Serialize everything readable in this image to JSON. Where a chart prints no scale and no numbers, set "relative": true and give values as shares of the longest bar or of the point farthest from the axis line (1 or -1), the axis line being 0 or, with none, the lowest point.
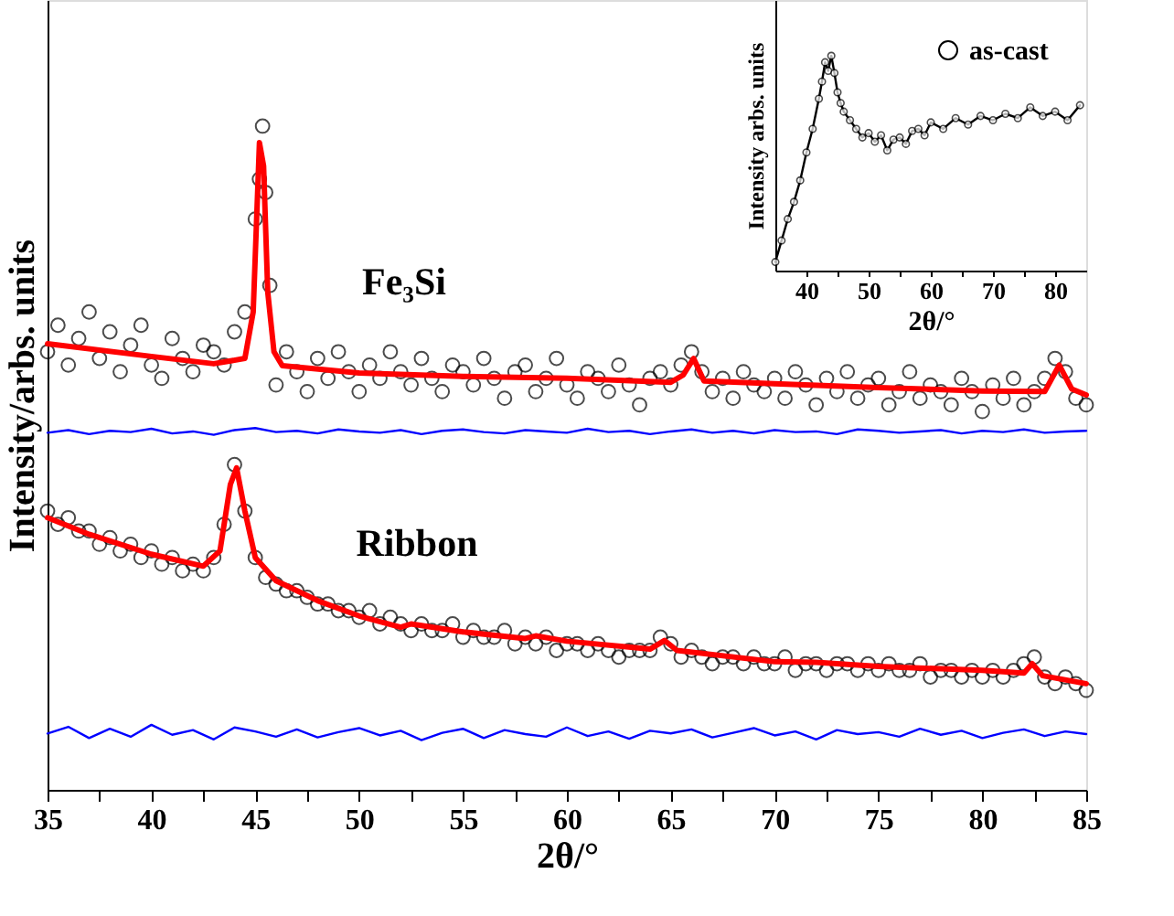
{
  "chart_data": [
    {
      "type": "scatter",
      "relative": true,
      "xlabel": "2θ/°",
      "ylabel": "Intensity/arbs. units",
      "xlim": [
        35,
        85
      ],
      "xticks": [
        35,
        {
          "value": 37.5,
          "label": null
        },
        40,
        {
          "value": 42.5,
          "label": null
        },
        45,
        {
          "value": 47.5,
          "label": null
        },
        50,
        {
          "value": 52.5,
          "label": null
        },
        55,
        {
          "value": 57.5,
          "label": null
        },
        60,
        {
          "value": 62.5,
          "label": null
        },
        65,
        {
          "value": 67.5,
          "label": null
        },
        70,
        {
          "value": 72.5,
          "label": null
        },
        75,
        {
          "value": 77.5,
          "label": null
        },
        80,
        {
          "value": 82.5,
          "label": null
        },
        85
      ],
      "legend": false,
      "line_style": "solid",
      "annotations": [
        "Fe₃Si",
        "Ribbon"
      ],
      "series": [
        {
          "type": "scatter",
          "marker": "circle",
          "color": "#000000",
          "x": [
            35,
            35.5,
            36,
            36.5,
            37,
            37.5,
            38,
            38.5,
            39,
            39.5,
            40,
            40.5,
            41,
            41.5,
            42,
            42.5,
            43,
            43.5,
            44,
            44.5,
            45,
            45.2,
            45.35,
            45.5,
            45.7,
            46,
            46.5,
            47,
            47.5,
            48,
            48.5,
            49,
            49.5,
            50,
            50.5,
            51,
            51.5,
            52,
            52.5,
            53,
            53.5,
            54,
            54.5,
            55,
            55.5,
            56,
            56.5,
            57,
            57.5,
            58,
            58.5,
            59,
            59.5,
            60,
            60.5,
            61,
            61.5,
            62,
            62.5,
            63,
            63.5,
            64,
            64.5,
            65,
            65.5,
            66,
            66.5,
            67,
            67.5,
            68,
            68.5,
            69,
            69.5,
            70,
            70.5,
            71,
            71.5,
            72,
            72.5,
            73,
            73.5,
            74,
            74.5,
            75,
            75.5,
            76,
            76.5,
            77,
            77.5,
            78,
            78.5,
            79,
            79.5,
            80,
            80.5,
            81,
            81.5,
            82,
            82.5,
            83,
            83.5,
            84,
            84.5,
            85
          ],
          "values": [
            0.66,
            0.7,
            0.64,
            0.68,
            0.72,
            0.65,
            0.69,
            0.63,
            0.67,
            0.7,
            0.64,
            0.62,
            0.68,
            0.65,
            0.63,
            0.67,
            0.66,
            0.64,
            0.69,
            0.72,
            0.86,
            0.92,
            1.0,
            0.9,
            0.76,
            0.61,
            0.66,
            0.63,
            0.6,
            0.65,
            0.62,
            0.66,
            0.63,
            0.6,
            0.64,
            0.62,
            0.66,
            0.63,
            0.61,
            0.65,
            0.62,
            0.6,
            0.64,
            0.63,
            0.61,
            0.65,
            0.62,
            0.59,
            0.63,
            0.64,
            0.6,
            0.62,
            0.65,
            0.61,
            0.59,
            0.63,
            0.62,
            0.6,
            0.64,
            0.61,
            0.58,
            0.62,
            0.63,
            0.61,
            0.64,
            0.66,
            0.63,
            0.6,
            0.62,
            0.59,
            0.63,
            0.61,
            0.6,
            0.62,
            0.59,
            0.63,
            0.61,
            0.58,
            0.62,
            0.6,
            0.63,
            0.59,
            0.61,
            0.62,
            0.58,
            0.6,
            0.63,
            0.59,
            0.61,
            0.6,
            0.58,
            0.62,
            0.6,
            0.57,
            0.61,
            0.59,
            0.62,
            0.58,
            0.6,
            0.62,
            0.65,
            0.63,
            0.59,
            0.58
          ]
        },
        {
          "type": "line",
          "color": "#ff0000",
          "x": [
            35,
            40,
            43,
            44.5,
            44.9,
            45.2,
            45.4,
            45.6,
            45.9,
            46.3,
            50,
            55,
            60,
            65,
            65.6,
            66.1,
            66.6,
            70,
            75,
            80,
            83,
            83.7,
            84.3,
            85
          ],
          "values": [
            0.672,
            0.653,
            0.642,
            0.65,
            0.72,
            0.975,
            0.94,
            0.75,
            0.66,
            0.639,
            0.628,
            0.623,
            0.62,
            0.614,
            0.625,
            0.65,
            0.616,
            0.612,
            0.606,
            0.601,
            0.6,
            0.64,
            0.604,
            0.595
          ]
        },
        {
          "type": "line",
          "color": "#0000ff",
          "x": [
            35,
            36,
            37,
            38,
            39,
            40,
            41,
            42,
            43,
            44,
            45,
            46,
            47,
            48,
            49,
            50,
            51,
            52,
            53,
            54,
            55,
            56,
            57,
            58,
            59,
            60,
            61,
            62,
            63,
            64,
            65,
            66,
            67,
            68,
            69,
            70,
            71,
            72,
            73,
            74,
            75,
            76,
            77,
            78,
            79,
            80,
            81,
            82,
            83,
            84,
            85
          ],
          "values": [
            0.538,
            0.542,
            0.536,
            0.541,
            0.539,
            0.544,
            0.537,
            0.54,
            0.535,
            0.542,
            0.545,
            0.539,
            0.541,
            0.537,
            0.543,
            0.54,
            0.538,
            0.542,
            0.536,
            0.541,
            0.543,
            0.539,
            0.537,
            0.542,
            0.54,
            0.538,
            0.544,
            0.539,
            0.541,
            0.536,
            0.54,
            0.543,
            0.538,
            0.541,
            0.537,
            0.542,
            0.539,
            0.54,
            0.536,
            0.543,
            0.541,
            0.538,
            0.54,
            0.542,
            0.537,
            0.541,
            0.539,
            0.543,
            0.538,
            0.54,
            0.541
          ]
        },
        {
          "type": "scatter",
          "marker": "circle",
          "color": "#000000",
          "x": [
            35,
            35.5,
            36,
            36.5,
            37,
            37.5,
            38,
            38.5,
            39,
            39.5,
            40,
            40.5,
            41,
            41.5,
            42,
            42.5,
            43,
            43.5,
            44,
            44.5,
            45,
            45.5,
            46,
            46.5,
            47,
            47.5,
            48,
            48.5,
            49,
            49.5,
            50,
            50.5,
            51,
            51.5,
            52,
            52.5,
            53,
            53.5,
            54,
            54.5,
            55,
            55.5,
            56,
            56.5,
            57,
            57.5,
            58,
            58.5,
            59,
            59.5,
            60,
            60.5,
            61,
            61.5,
            62,
            62.5,
            63,
            63.5,
            64,
            64.5,
            65,
            65.5,
            66,
            66.5,
            67,
            67.5,
            68,
            68.5,
            69,
            69.5,
            70,
            70.5,
            71,
            71.5,
            72,
            72.5,
            73,
            73.5,
            74,
            74.5,
            75,
            75.5,
            76,
            76.5,
            77,
            77.5,
            78,
            78.5,
            79,
            79.5,
            80,
            80.5,
            81,
            81.5,
            82,
            82.5,
            83,
            83.5,
            84,
            84.5,
            85
          ],
          "values": [
            0.42,
            0.4,
            0.41,
            0.39,
            0.39,
            0.37,
            0.38,
            0.36,
            0.37,
            0.35,
            0.36,
            0.34,
            0.35,
            0.33,
            0.34,
            0.33,
            0.35,
            0.4,
            0.49,
            0.42,
            0.35,
            0.32,
            0.31,
            0.3,
            0.3,
            0.29,
            0.28,
            0.28,
            0.27,
            0.27,
            0.26,
            0.27,
            0.25,
            0.26,
            0.25,
            0.24,
            0.25,
            0.24,
            0.24,
            0.25,
            0.23,
            0.24,
            0.23,
            0.23,
            0.24,
            0.22,
            0.23,
            0.22,
            0.23,
            0.21,
            0.22,
            0.22,
            0.21,
            0.22,
            0.21,
            0.2,
            0.21,
            0.21,
            0.21,
            0.23,
            0.22,
            0.2,
            0.21,
            0.2,
            0.19,
            0.2,
            0.2,
            0.19,
            0.2,
            0.19,
            0.19,
            0.2,
            0.18,
            0.19,
            0.19,
            0.18,
            0.19,
            0.19,
            0.18,
            0.19,
            0.18,
            0.19,
            0.18,
            0.18,
            0.19,
            0.17,
            0.18,
            0.18,
            0.17,
            0.18,
            0.17,
            0.18,
            0.17,
            0.18,
            0.19,
            0.2,
            0.17,
            0.16,
            0.17,
            0.16,
            0.15
          ]
        },
        {
          "type": "line",
          "color": "#ff0000",
          "x": [
            35,
            37,
            40,
            42.5,
            43.3,
            43.8,
            44.1,
            44.5,
            45,
            46,
            48,
            50,
            52,
            52.5,
            55,
            58,
            58.5,
            60,
            64,
            64.7,
            65.3,
            70,
            72,
            75,
            80,
            82,
            82.4,
            82.9,
            85
          ],
          "values": [
            0.41,
            0.385,
            0.355,
            0.337,
            0.36,
            0.46,
            0.485,
            0.42,
            0.35,
            0.315,
            0.285,
            0.262,
            0.245,
            0.25,
            0.238,
            0.228,
            0.232,
            0.224,
            0.212,
            0.225,
            0.21,
            0.193,
            0.192,
            0.186,
            0.18,
            0.176,
            0.19,
            0.172,
            0.16
          ]
        },
        {
          "type": "line",
          "color": "#0000ff",
          "x": [
            35,
            36,
            37,
            38,
            39,
            40,
            41,
            42,
            43,
            44,
            45,
            46,
            47,
            48,
            49,
            50,
            51,
            52,
            53,
            54,
            55,
            56,
            57,
            58,
            59,
            60,
            61,
            62,
            63,
            64,
            65,
            66,
            67,
            68,
            69,
            70,
            71,
            72,
            73,
            74,
            75,
            76,
            77,
            78,
            79,
            80,
            81,
            82,
            83,
            84,
            85
          ],
          "values": [
            0.085,
            0.095,
            0.078,
            0.092,
            0.08,
            0.098,
            0.083,
            0.09,
            0.076,
            0.094,
            0.088,
            0.08,
            0.091,
            0.079,
            0.087,
            0.093,
            0.082,
            0.089,
            0.075,
            0.086,
            0.092,
            0.078,
            0.09,
            0.084,
            0.08,
            0.094,
            0.081,
            0.088,
            0.077,
            0.089,
            0.085,
            0.091,
            0.079,
            0.086,
            0.093,
            0.082,
            0.088,
            0.076,
            0.09,
            0.084,
            0.087,
            0.08,
            0.092,
            0.083,
            0.089,
            0.078,
            0.086,
            0.091,
            0.081,
            0.088,
            0.084
          ]
        }
      ]
    },
    {
      "type": "line",
      "relative": true,
      "xlabel": "2θ/°",
      "ylabel": "Intensity arbs. units",
      "xlim": [
        35,
        85
      ],
      "xticks": [
        40,
        {
          "value": 45,
          "label": null
        },
        50,
        {
          "value": 55,
          "label": null
        },
        60,
        {
          "value": 65,
          "label": null
        },
        70,
        {
          "value": 75,
          "label": null
        },
        80
      ],
      "legend": "top right",
      "marker": "circle",
      "line_style": "solid",
      "series": [
        {
          "name": "as-cast",
          "color": "#000000",
          "x": [
            35,
            36,
            37,
            38,
            39,
            40,
            41,
            42,
            42.5,
            43,
            43.5,
            44,
            44.5,
            45,
            45.5,
            46,
            47,
            48,
            49,
            50,
            51,
            52,
            53,
            54,
            55,
            56,
            57,
            58,
            59,
            60,
            62,
            64,
            66,
            68,
            70,
            72,
            74,
            76,
            78,
            80,
            82,
            84
          ],
          "values": [
            0.04,
            0.14,
            0.24,
            0.32,
            0.42,
            0.55,
            0.66,
            0.8,
            0.88,
            0.97,
            0.93,
            1.0,
            0.92,
            0.83,
            0.78,
            0.74,
            0.7,
            0.66,
            0.62,
            0.64,
            0.6,
            0.63,
            0.56,
            0.61,
            0.62,
            0.59,
            0.65,
            0.66,
            0.63,
            0.69,
            0.66,
            0.71,
            0.68,
            0.72,
            0.7,
            0.73,
            0.71,
            0.76,
            0.72,
            0.74,
            0.7,
            0.77
          ]
        }
      ]
    }
  ]
}
